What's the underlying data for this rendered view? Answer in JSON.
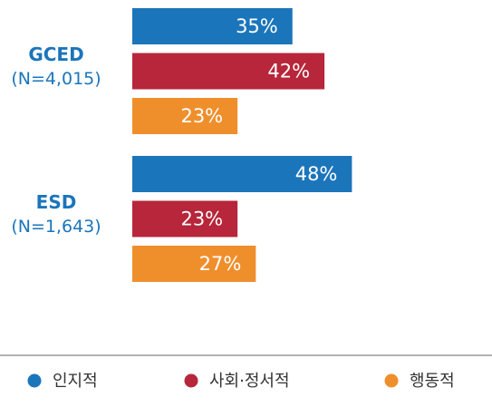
{
  "chart_data": {
    "type": "bar",
    "categories": [
      "GCED",
      "ESD"
    ],
    "category_notes": [
      "(N=4,015)",
      "(N=1,643)"
    ],
    "series": [
      {
        "name": "인지적",
        "color": "#1b75bb",
        "values": [
          35,
          48
        ],
        "value_labels": [
          "35%",
          "48%"
        ]
      },
      {
        "name": "사회·정서적",
        "color": "#b7263a",
        "values": [
          42,
          23
        ],
        "value_labels": [
          "42%",
          "23%"
        ]
      },
      {
        "name": "행동적",
        "color": "#ef8f2c",
        "values": [
          23,
          27
        ],
        "value_labels": [
          "23%",
          "27%"
        ]
      }
    ]
  }
}
